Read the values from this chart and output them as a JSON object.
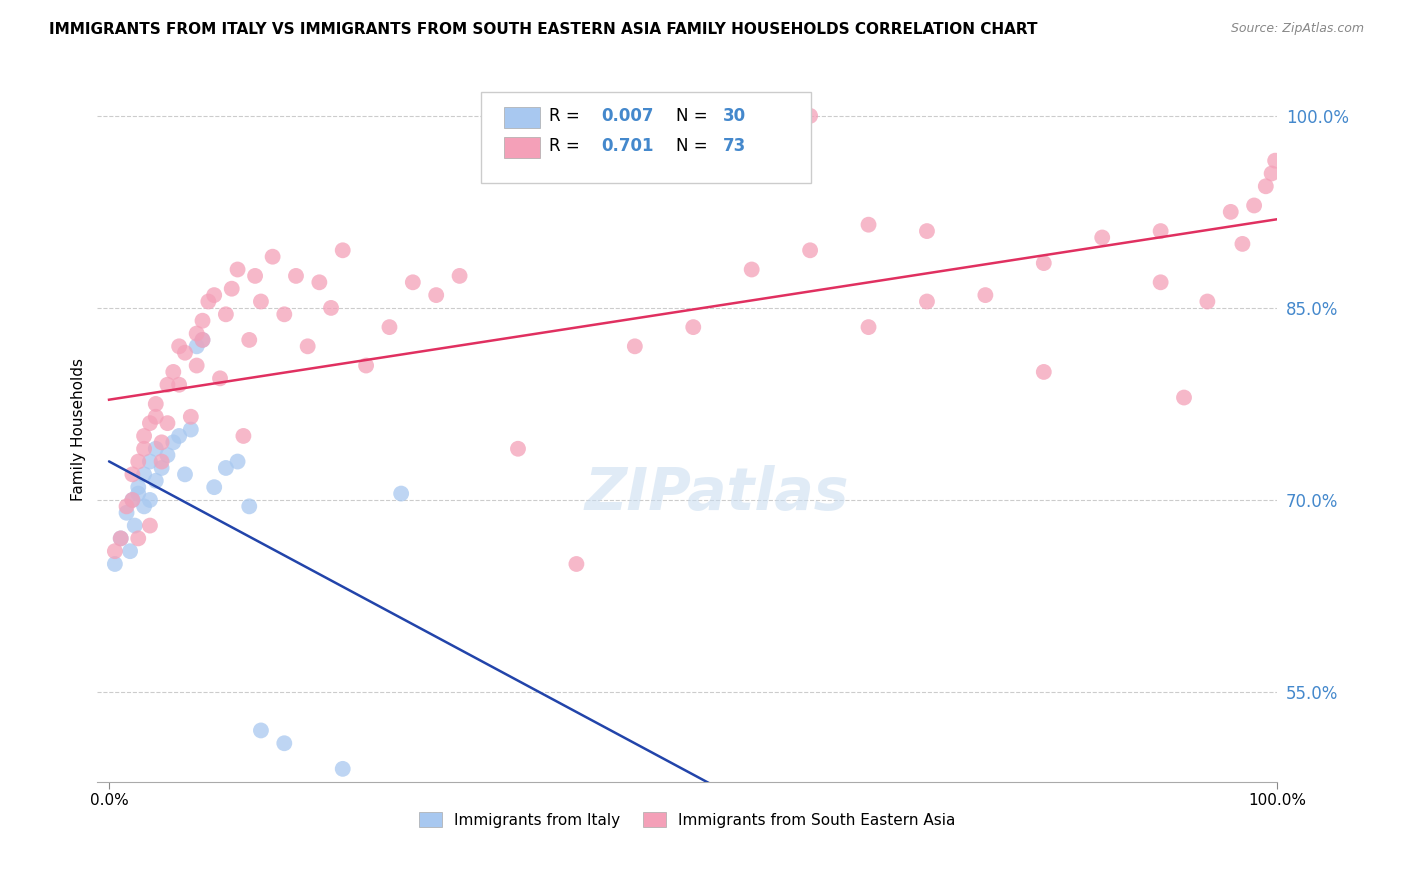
{
  "title": "IMMIGRANTS FROM ITALY VS IMMIGRANTS FROM SOUTH EASTERN ASIA FAMILY HOUSEHOLDS CORRELATION CHART",
  "source": "Source: ZipAtlas.com",
  "ylabel": "Family Households",
  "color_blue": "#A8C8F0",
  "color_pink": "#F4A0B8",
  "line_blue": "#2244AA",
  "line_pink": "#E03060",
  "watermark": "ZIPatlas",
  "italy_x": [
    0.5,
    1.0,
    1.5,
    1.8,
    2.0,
    2.2,
    2.5,
    2.5,
    3.0,
    3.0,
    3.5,
    3.5,
    4.0,
    4.0,
    4.5,
    5.0,
    5.5,
    6.0,
    6.5,
    7.0,
    7.5,
    8.0,
    9.0,
    10.0,
    11.0,
    12.0,
    13.0,
    15.0,
    20.0,
    25.0
  ],
  "italy_y": [
    65.0,
    67.0,
    69.0,
    66.0,
    70.0,
    68.0,
    70.5,
    71.0,
    69.5,
    72.0,
    70.0,
    73.0,
    71.5,
    74.0,
    72.5,
    73.5,
    74.5,
    75.0,
    72.0,
    75.5,
    82.0,
    82.5,
    71.0,
    72.5,
    73.0,
    69.5,
    52.0,
    51.0,
    49.0,
    70.5
  ],
  "sea_x": [
    0.5,
    1.0,
    1.5,
    2.0,
    2.0,
    2.5,
    2.5,
    3.0,
    3.0,
    3.5,
    3.5,
    4.0,
    4.0,
    4.5,
    4.5,
    5.0,
    5.0,
    5.5,
    6.0,
    6.0,
    6.5,
    7.0,
    7.5,
    7.5,
    8.0,
    8.0,
    8.5,
    9.0,
    9.5,
    10.0,
    10.5,
    11.0,
    11.5,
    12.0,
    12.5,
    13.0,
    14.0,
    15.0,
    16.0,
    17.0,
    18.0,
    19.0,
    20.0,
    22.0,
    24.0,
    26.0,
    28.0,
    30.0,
    35.0,
    40.0,
    45.0,
    50.0,
    55.0,
    60.0,
    65.0,
    70.0,
    75.0,
    80.0,
    85.0,
    90.0,
    92.0,
    94.0,
    96.0,
    97.0,
    98.0,
    99.0,
    99.5,
    99.8,
    90.0,
    80.0,
    70.0,
    65.0,
    60.0
  ],
  "sea_y": [
    66.0,
    67.0,
    69.5,
    70.0,
    72.0,
    73.0,
    67.0,
    74.0,
    75.0,
    76.0,
    68.0,
    76.5,
    77.5,
    74.5,
    73.0,
    79.0,
    76.0,
    80.0,
    82.0,
    79.0,
    81.5,
    76.5,
    80.5,
    83.0,
    82.5,
    84.0,
    85.5,
    86.0,
    79.5,
    84.5,
    86.5,
    88.0,
    75.0,
    82.5,
    87.5,
    85.5,
    89.0,
    84.5,
    87.5,
    82.0,
    87.0,
    85.0,
    89.5,
    80.5,
    83.5,
    87.0,
    86.0,
    87.5,
    74.0,
    65.0,
    82.0,
    83.5,
    88.0,
    89.5,
    83.5,
    85.5,
    86.0,
    88.5,
    90.5,
    91.0,
    78.0,
    85.5,
    92.5,
    90.0,
    93.0,
    94.5,
    95.5,
    96.5,
    87.0,
    80.0,
    91.0,
    91.5,
    100.0
  ]
}
